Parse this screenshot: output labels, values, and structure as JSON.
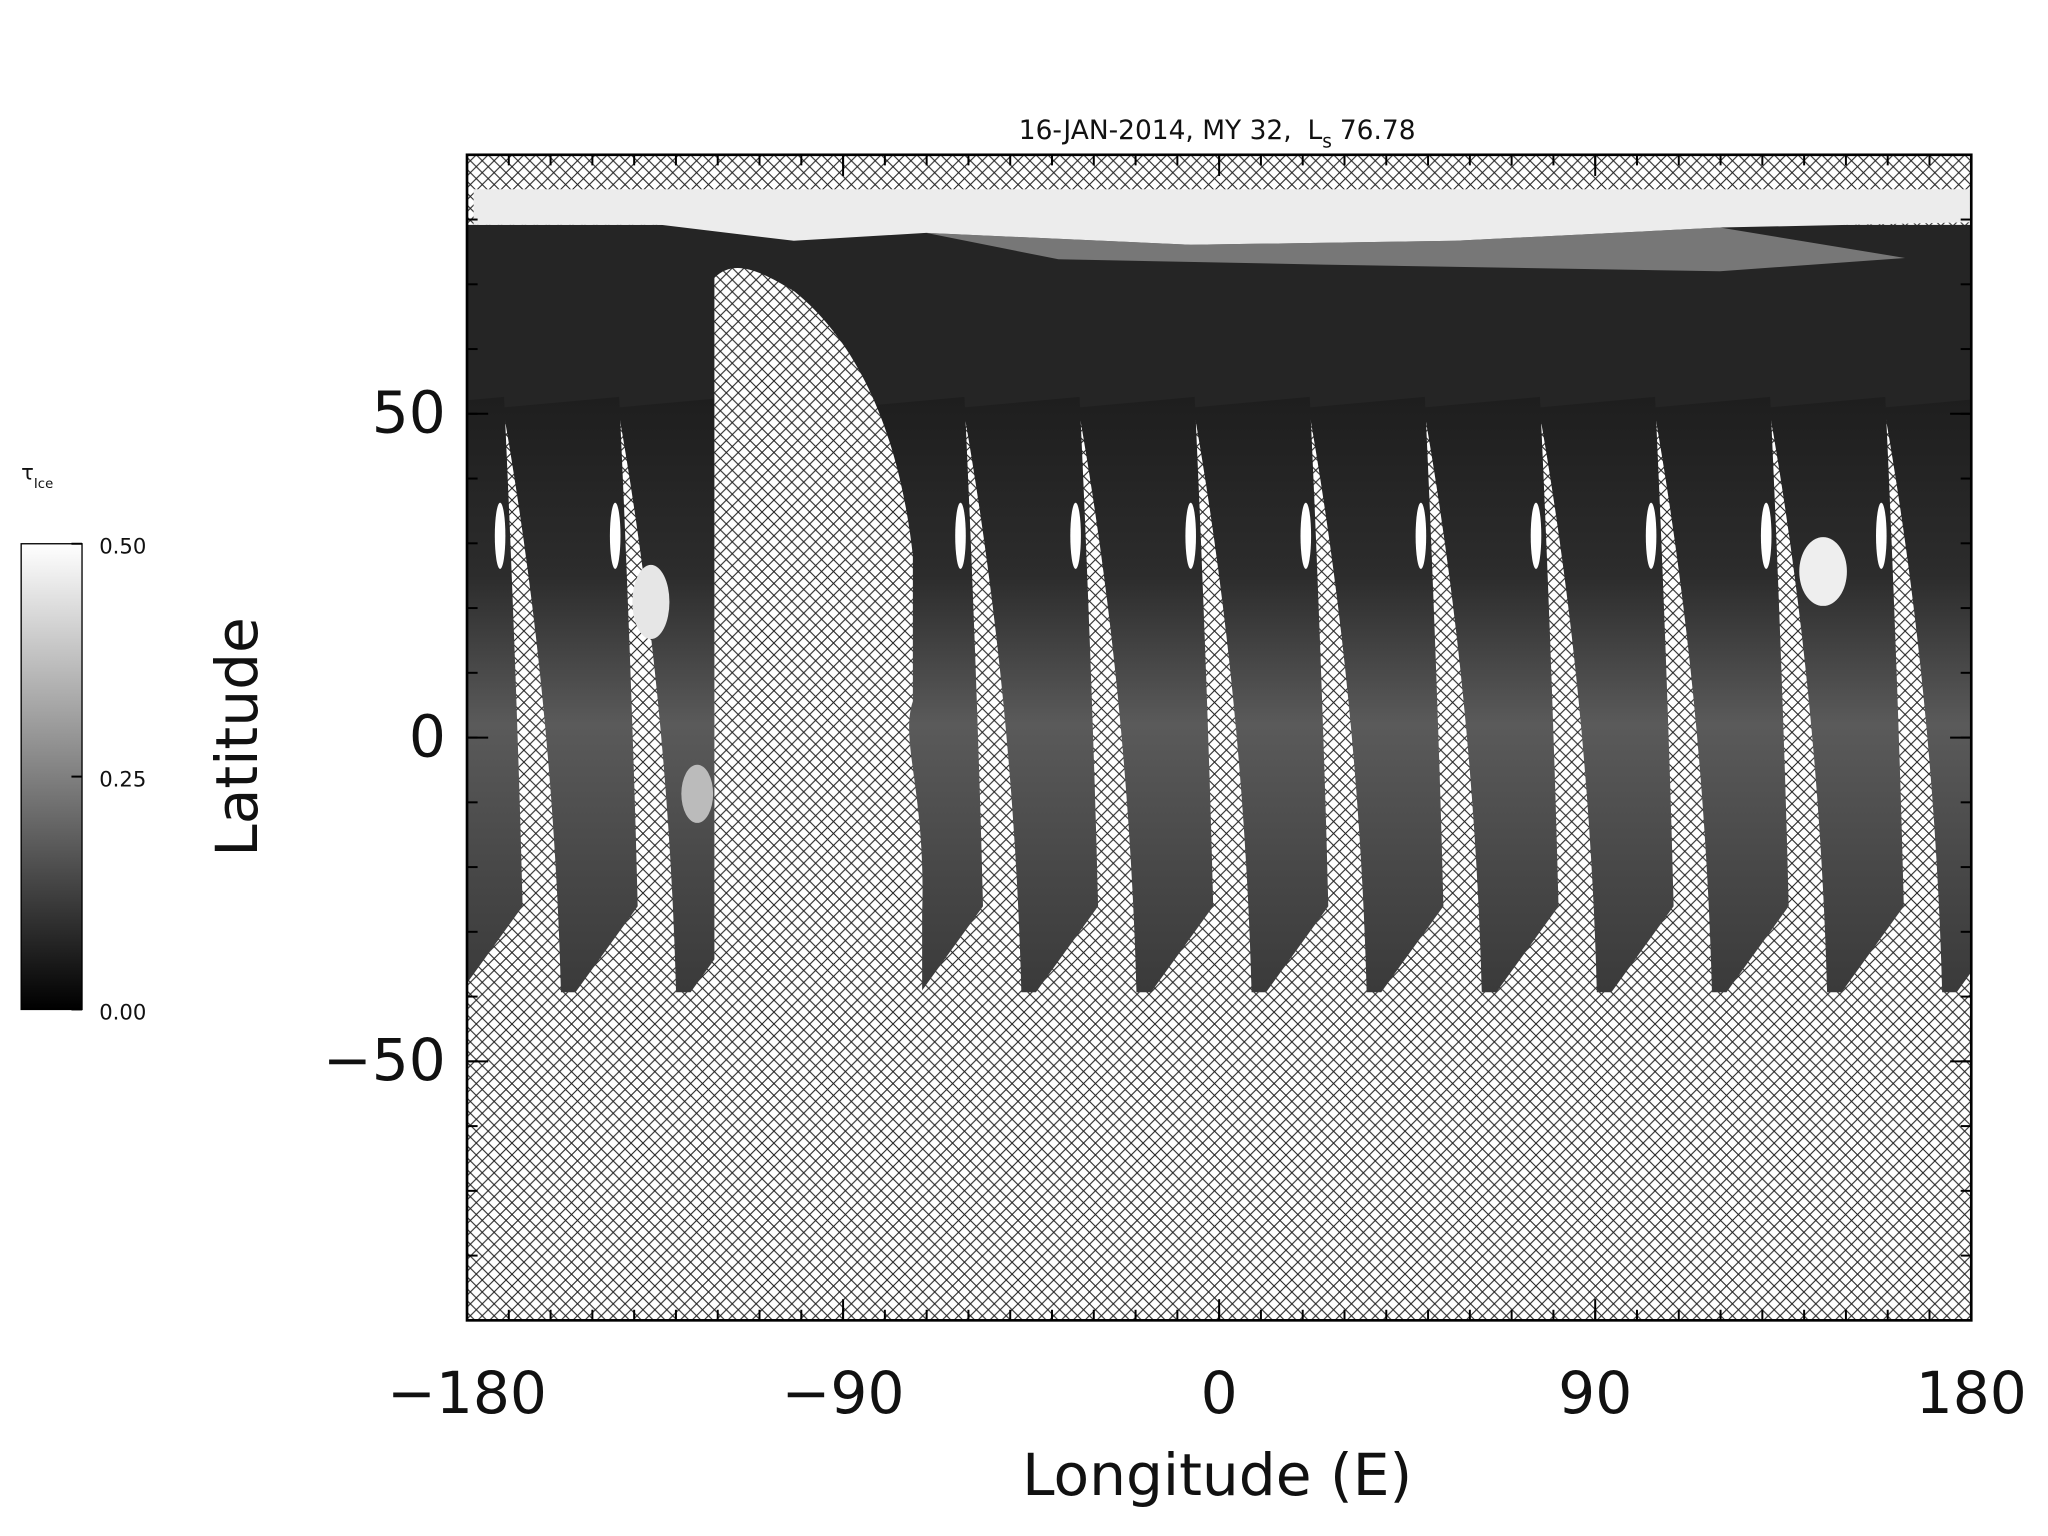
{
  "chart_data": {
    "type": "map",
    "title": "16-JAN-2014, MY 32,",
    "ls": {
      "symbol": "L",
      "subscript": "s",
      "value": 76.78
    },
    "xlabel": "Longitude (E)",
    "ylabel": "Latitude",
    "xlim": [
      -180,
      180
    ],
    "xticks": [
      -180,
      -90,
      0,
      90,
      180
    ],
    "xminor": 10,
    "ylim": [
      -90,
      90
    ],
    "yticks": [
      -50,
      0,
      50
    ],
    "yminor": 10,
    "colorbar": {
      "symbol": "τ",
      "subscript": "Ice",
      "lim": [
        0,
        0.5
      ],
      "ticks": [
        {
          "value": 0,
          "label": "0.00"
        },
        {
          "value": 0.25,
          "label": "0.25"
        },
        {
          "value": 0.5,
          "label": "0.50"
        }
      ],
      "colors": [
        "#000000",
        "#ffffff"
      ]
    }
  }
}
